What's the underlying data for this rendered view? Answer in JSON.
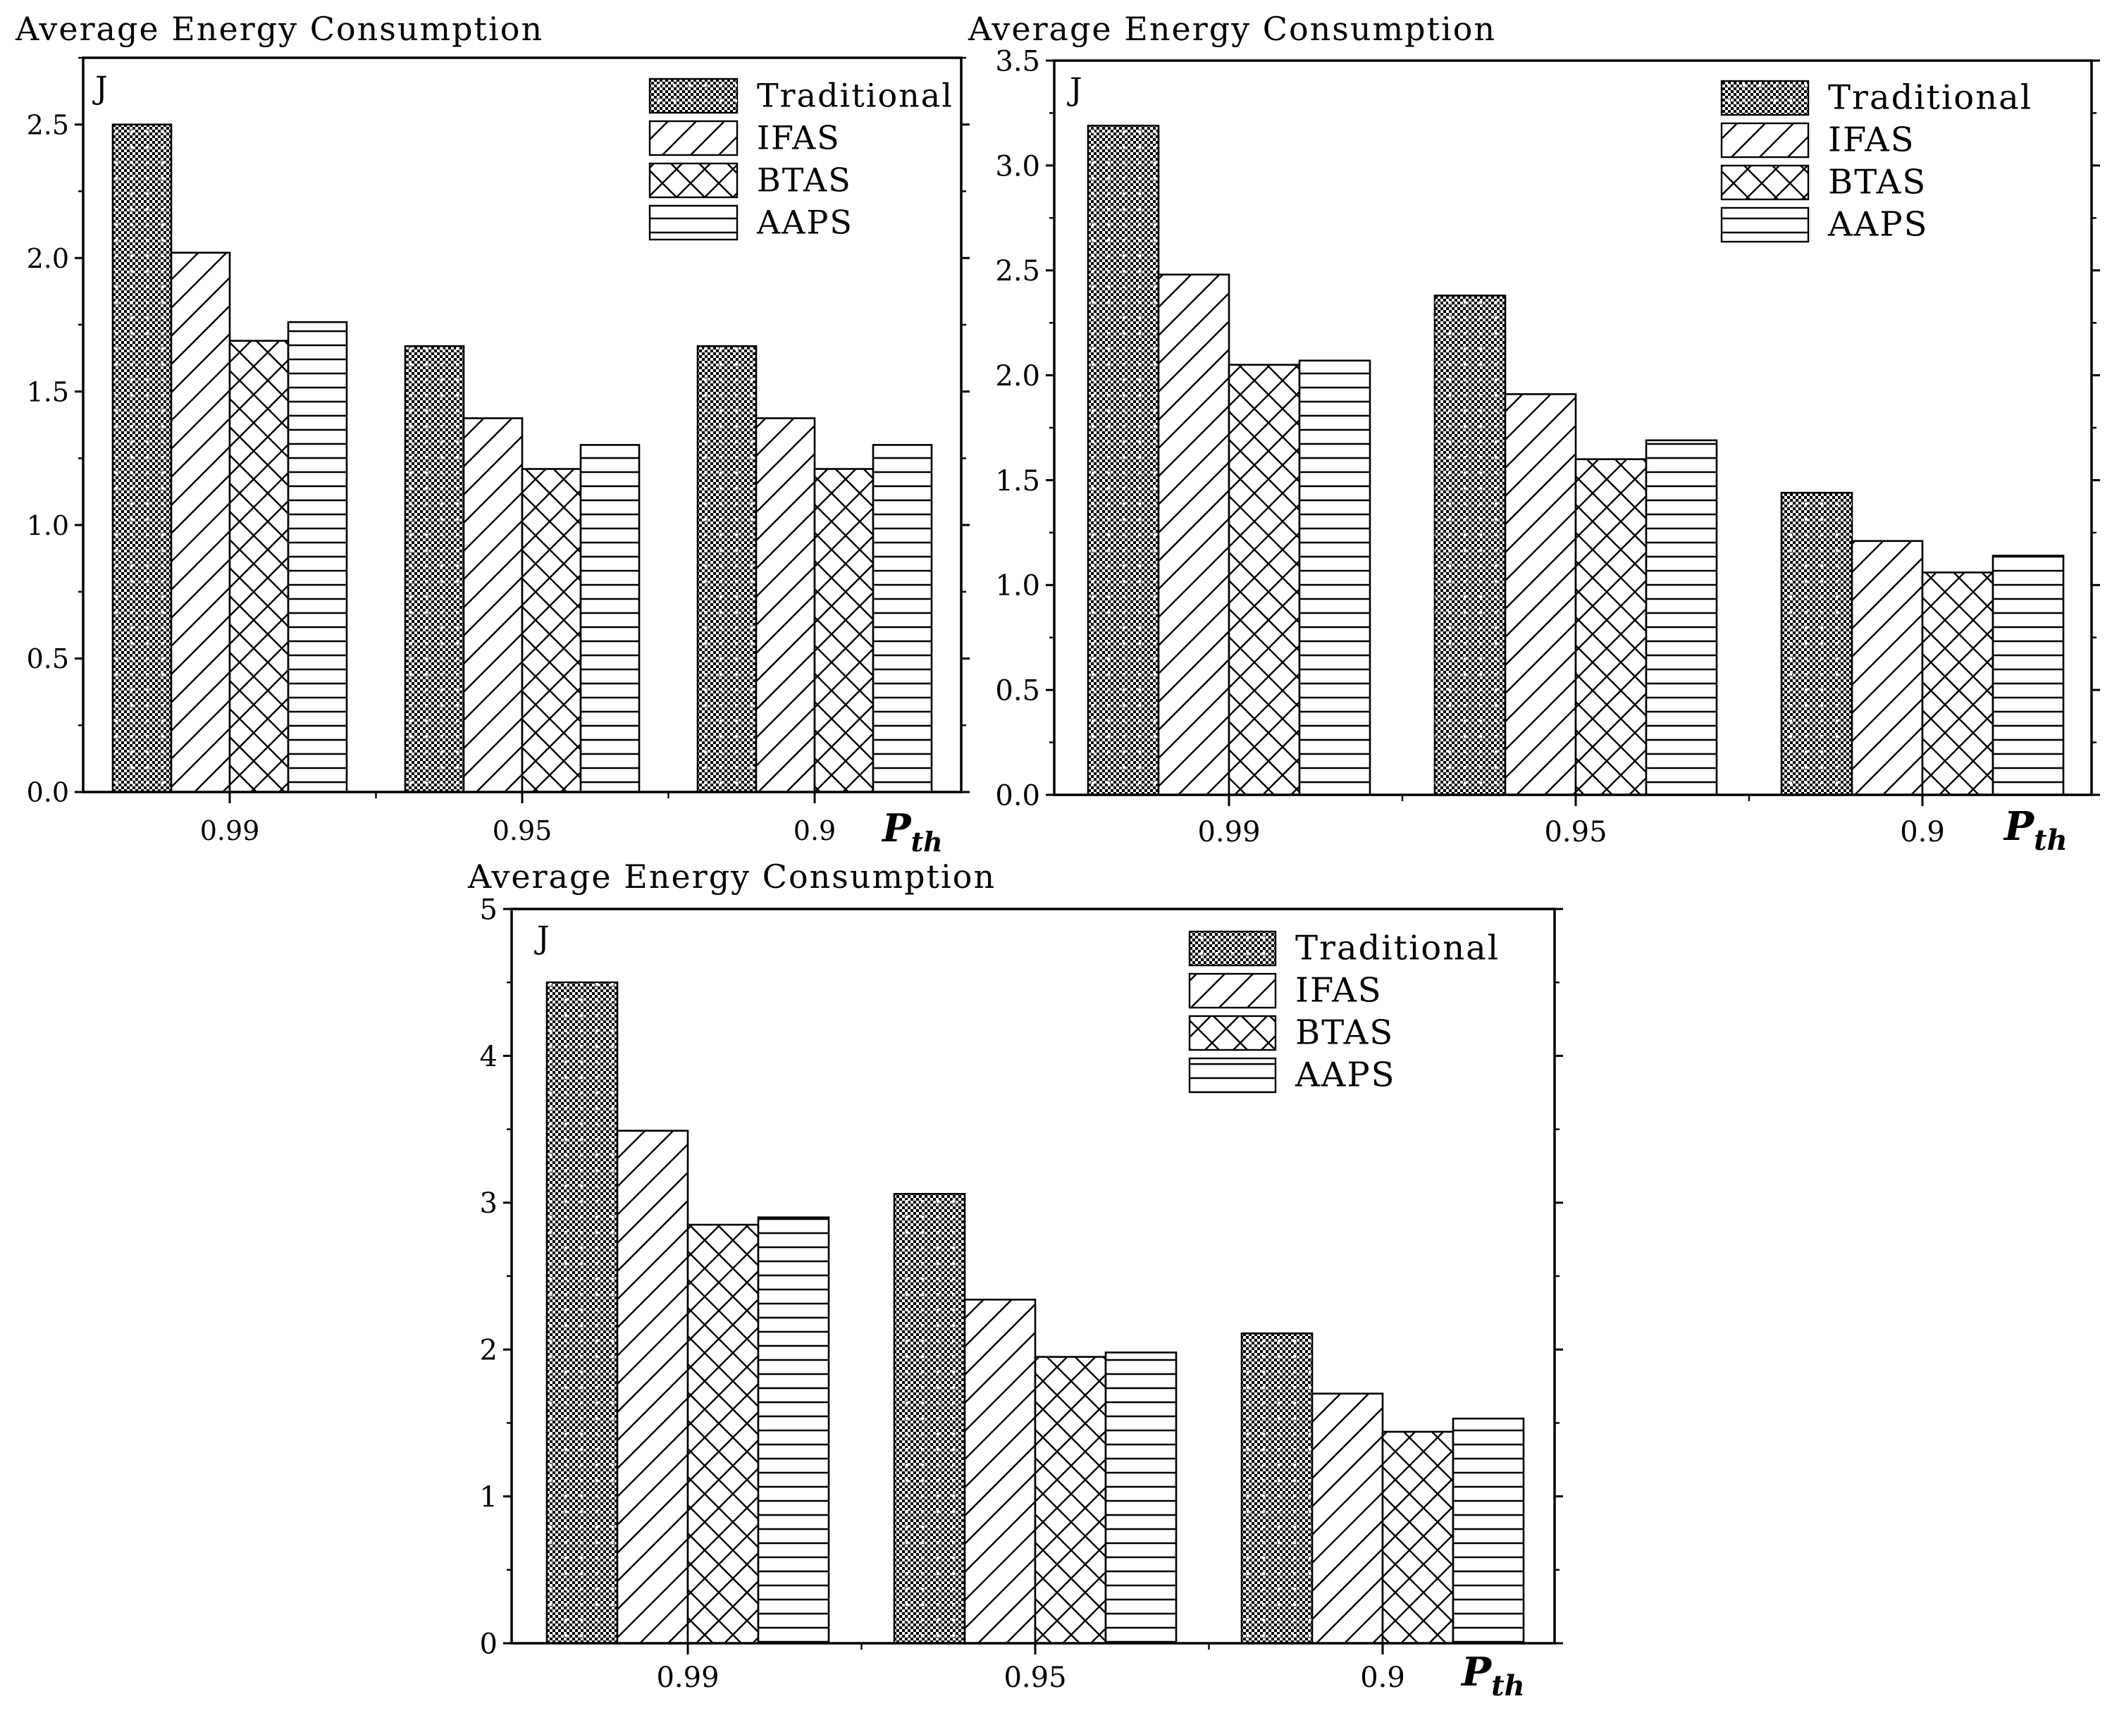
{
  "chart_data": [
    {
      "type": "bar",
      "title": "Average Energy Consumption",
      "ylabel": "J",
      "xlabel": "P",
      "xlabel_sub": "th",
      "categories": [
        "0.99",
        "0.95",
        "0.9"
      ],
      "ylim": [
        0,
        2.75
      ],
      "yticks": [
        0.0,
        0.5,
        1.0,
        1.5,
        2.0,
        2.5
      ],
      "ytick_labels": [
        "0.0",
        "0.5",
        "1.0",
        "1.5",
        "2.0",
        "2.5"
      ],
      "legend_position": "top-right",
      "series": [
        {
          "name": "Traditional",
          "values": [
            2.5,
            1.67,
            1.67
          ]
        },
        {
          "name": "IFAS",
          "values": [
            2.02,
            1.4,
            1.4
          ]
        },
        {
          "name": "BTAS",
          "values": [
            1.69,
            1.21,
            1.21
          ]
        },
        {
          "name": "AAPS",
          "values": [
            1.76,
            1.3,
            1.3
          ]
        }
      ]
    },
    {
      "type": "bar",
      "title": "Average Energy Consumption",
      "ylabel": "J",
      "xlabel": "P",
      "xlabel_sub": "th",
      "categories": [
        "0.99",
        "0.95",
        "0.9"
      ],
      "ylim": [
        0,
        3.5
      ],
      "yticks": [
        0.0,
        0.5,
        1.0,
        1.5,
        2.0,
        2.5,
        3.0,
        3.5
      ],
      "ytick_labels": [
        "0.0",
        "0.5",
        "1.0",
        "1.5",
        "2.0",
        "2.5",
        "3.0",
        "3.5"
      ],
      "legend_position": "top-right",
      "series": [
        {
          "name": "Traditional",
          "values": [
            3.19,
            2.38,
            1.44
          ]
        },
        {
          "name": "IFAS",
          "values": [
            2.48,
            1.91,
            1.21
          ]
        },
        {
          "name": "BTAS",
          "values": [
            2.05,
            1.6,
            1.06
          ]
        },
        {
          "name": "AAPS",
          "values": [
            2.07,
            1.69,
            1.14
          ]
        }
      ]
    },
    {
      "type": "bar",
      "title": "Average Energy Consumption",
      "ylabel": "J",
      "xlabel": "P",
      "xlabel_sub": "th",
      "categories": [
        "0.99",
        "0.95",
        "0.9"
      ],
      "ylim": [
        0,
        5
      ],
      "yticks": [
        0,
        1,
        2,
        3,
        4,
        5
      ],
      "ytick_labels": [
        "0",
        "1",
        "2",
        "3",
        "4",
        "5"
      ],
      "legend_position": "top-right",
      "series": [
        {
          "name": "Traditional",
          "values": [
            4.5,
            3.06,
            2.11
          ]
        },
        {
          "name": "IFAS",
          "values": [
            3.49,
            2.34,
            1.7
          ]
        },
        {
          "name": "BTAS",
          "values": [
            2.85,
            1.95,
            1.44
          ]
        },
        {
          "name": "AAPS",
          "values": [
            2.9,
            1.98,
            1.53
          ]
        }
      ]
    }
  ]
}
